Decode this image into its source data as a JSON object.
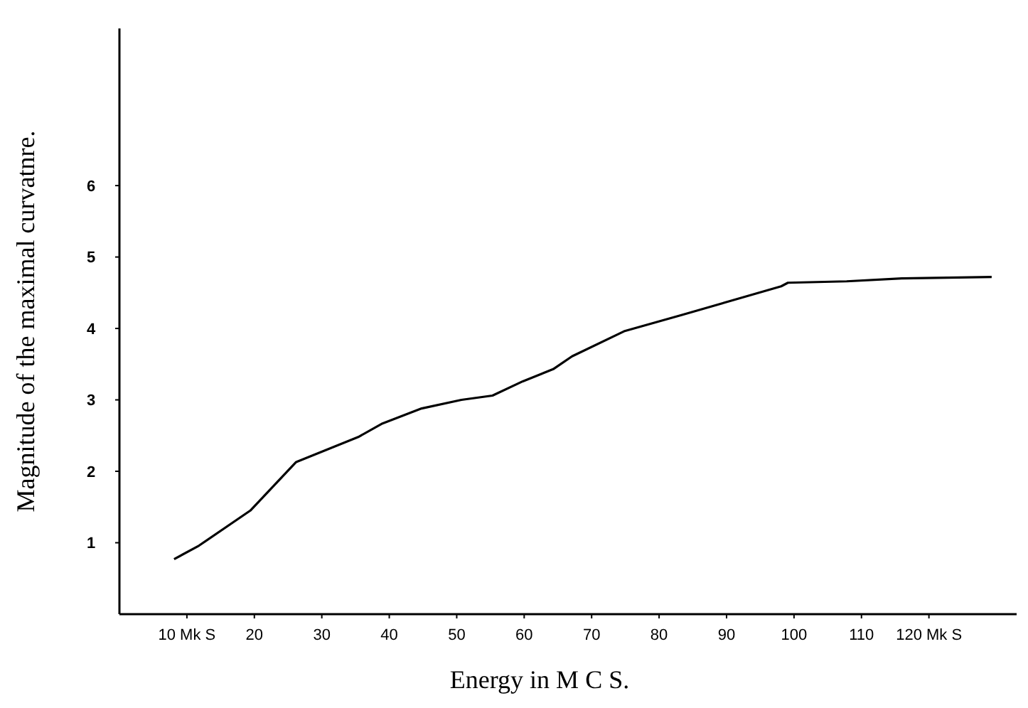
{
  "chart_data": {
    "type": "line",
    "xlabel": "Energy in M C S.",
    "ylabel": "Magnitude of the maximal curvatnre.",
    "xlim": [
      0,
      133
    ],
    "ylim": [
      0,
      8.2
    ],
    "xticks": [
      {
        "value": 10,
        "label": "10 Mk S"
      },
      20,
      30,
      40,
      50,
      60,
      70,
      80,
      90,
      100,
      110,
      {
        "value": 120,
        "label": "120 Mk S"
      }
    ],
    "yticks": [
      1,
      2,
      3,
      4,
      5,
      6
    ],
    "x": [
      8.1,
      11.8,
      19.4,
      26.2,
      35.4,
      39.0,
      44.8,
      50.7,
      55.3,
      59.8,
      64.3,
      67.1,
      74.8,
      83.4,
      98.1,
      99.1,
      107.8,
      116,
      129.3
    ],
    "series": [
      {
        "color": "#000000",
        "values": [
          0.77,
          0.96,
          1.45,
          2.13,
          2.48,
          2.67,
          2.88,
          3.0,
          3.06,
          3.26,
          3.43,
          3.61,
          3.96,
          4.19,
          4.59,
          4.64,
          4.66,
          4.7,
          4.72
        ]
      }
    ],
    "grid": false,
    "marker": "none",
    "line_style": "solid"
  }
}
